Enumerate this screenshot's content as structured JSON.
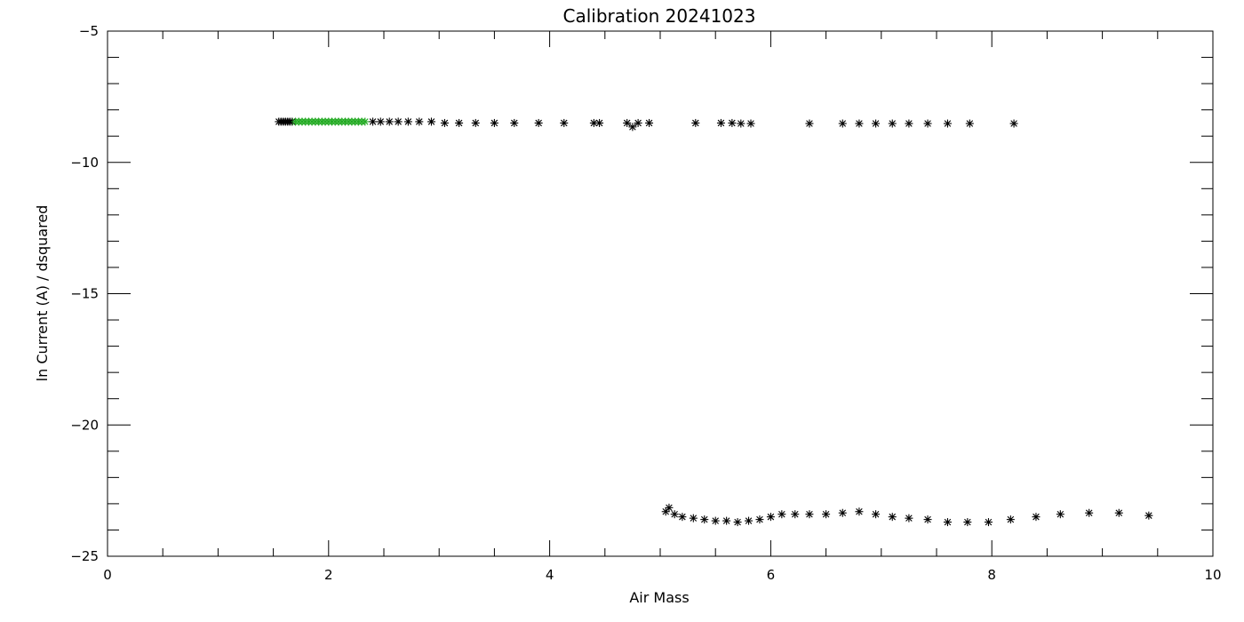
{
  "chart_data": {
    "type": "scatter",
    "title": "Calibration  20241023",
    "xlabel": "Air Mass",
    "ylabel": "ln Current (A) / dsquared",
    "xlim": [
      0,
      10
    ],
    "ylim": [
      -25,
      -5
    ],
    "xticks": [
      0,
      2,
      4,
      6,
      8,
      10
    ],
    "yticks": [
      -25,
      -20,
      -15,
      -10,
      -5
    ],
    "xminor_step": 0.5,
    "yminor_step": 1,
    "grid": false,
    "marker": "asterisk",
    "series": [
      {
        "color": "#000000",
        "points": [
          [
            1.55,
            -8.45
          ],
          [
            1.57,
            -8.45
          ],
          [
            1.59,
            -8.45
          ],
          [
            1.61,
            -8.45
          ],
          [
            1.63,
            -8.45
          ],
          [
            1.65,
            -8.45
          ],
          [
            1.67,
            -8.45
          ],
          [
            2.4,
            -8.45
          ],
          [
            2.47,
            -8.45
          ],
          [
            2.55,
            -8.45
          ],
          [
            2.63,
            -8.45
          ],
          [
            2.72,
            -8.45
          ],
          [
            2.82,
            -8.45
          ],
          [
            2.93,
            -8.45
          ],
          [
            3.05,
            -8.5
          ],
          [
            3.18,
            -8.5
          ],
          [
            3.33,
            -8.5
          ],
          [
            3.5,
            -8.5
          ],
          [
            3.68,
            -8.5
          ],
          [
            3.9,
            -8.5
          ],
          [
            4.13,
            -8.5
          ],
          [
            4.4,
            -8.5
          ],
          [
            4.45,
            -8.5
          ],
          [
            4.7,
            -8.5
          ],
          [
            4.75,
            -8.65
          ],
          [
            4.8,
            -8.5
          ],
          [
            4.9,
            -8.5
          ],
          [
            5.32,
            -8.5
          ],
          [
            5.55,
            -8.5
          ],
          [
            5.65,
            -8.5
          ],
          [
            5.73,
            -8.52
          ],
          [
            5.82,
            -8.52
          ],
          [
            6.35,
            -8.52
          ],
          [
            6.65,
            -8.52
          ],
          [
            6.8,
            -8.52
          ],
          [
            6.95,
            -8.52
          ],
          [
            7.1,
            -8.52
          ],
          [
            7.25,
            -8.52
          ],
          [
            7.42,
            -8.52
          ],
          [
            7.6,
            -8.52
          ],
          [
            7.8,
            -8.52
          ],
          [
            8.2,
            -8.52
          ],
          [
            5.05,
            -23.3
          ],
          [
            5.08,
            -23.15
          ],
          [
            5.13,
            -23.4
          ],
          [
            5.2,
            -23.5
          ],
          [
            5.3,
            -23.55
          ],
          [
            5.4,
            -23.6
          ],
          [
            5.5,
            -23.65
          ],
          [
            5.6,
            -23.65
          ],
          [
            5.7,
            -23.7
          ],
          [
            5.8,
            -23.65
          ],
          [
            5.9,
            -23.6
          ],
          [
            6.0,
            -23.5
          ],
          [
            6.1,
            -23.4
          ],
          [
            6.22,
            -23.4
          ],
          [
            6.35,
            -23.4
          ],
          [
            6.5,
            -23.4
          ],
          [
            6.65,
            -23.35
          ],
          [
            6.8,
            -23.3
          ],
          [
            6.95,
            -23.4
          ],
          [
            7.1,
            -23.5
          ],
          [
            7.25,
            -23.55
          ],
          [
            7.42,
            -23.6
          ],
          [
            7.6,
            -23.7
          ],
          [
            7.78,
            -23.7
          ],
          [
            7.97,
            -23.7
          ],
          [
            8.17,
            -23.6
          ],
          [
            8.4,
            -23.5
          ],
          [
            8.62,
            -23.4
          ],
          [
            8.88,
            -23.35
          ],
          [
            9.15,
            -23.35
          ],
          [
            9.42,
            -23.45
          ]
        ]
      },
      {
        "color": "#22aa22",
        "points": [
          [
            1.7,
            -8.45
          ],
          [
            1.73,
            -8.45
          ],
          [
            1.76,
            -8.45
          ],
          [
            1.79,
            -8.45
          ],
          [
            1.82,
            -8.45
          ],
          [
            1.85,
            -8.45
          ],
          [
            1.88,
            -8.45
          ],
          [
            1.91,
            -8.45
          ],
          [
            1.94,
            -8.45
          ],
          [
            1.97,
            -8.45
          ],
          [
            2.0,
            -8.45
          ],
          [
            2.03,
            -8.45
          ],
          [
            2.06,
            -8.45
          ],
          [
            2.09,
            -8.45
          ],
          [
            2.12,
            -8.45
          ],
          [
            2.15,
            -8.45
          ],
          [
            2.18,
            -8.45
          ],
          [
            2.21,
            -8.45
          ],
          [
            2.24,
            -8.45
          ],
          [
            2.27,
            -8.45
          ],
          [
            2.3,
            -8.45
          ],
          [
            2.33,
            -8.45
          ]
        ]
      }
    ]
  }
}
